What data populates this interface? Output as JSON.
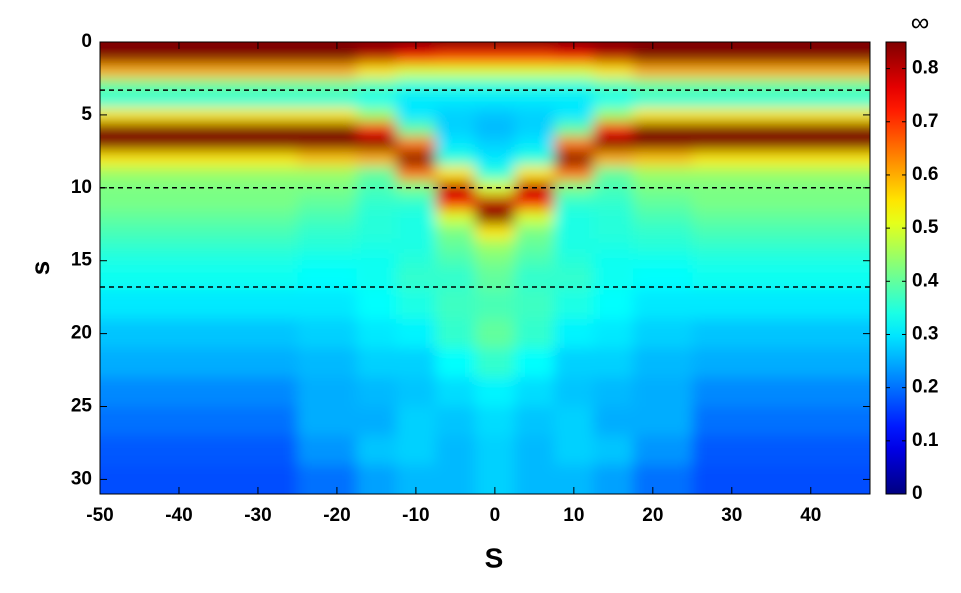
{
  "chart_data": {
    "type": "heatmap",
    "colormap": "jet",
    "x_label": "S",
    "y_label": "s",
    "colorbar_label": "∞",
    "xlim": [
      -50,
      47.5
    ],
    "xticks": [
      -50,
      -40,
      -30,
      -20,
      -10,
      0,
      10,
      20,
      30,
      40
    ],
    "ylim": [
      0,
      31
    ],
    "yticks": [
      0,
      5,
      10,
      15,
      20,
      25,
      30
    ],
    "y_reversed": true,
    "zlim": [
      0,
      0.85
    ],
    "zticks": [
      0,
      0.1,
      0.2,
      0.3,
      0.4,
      0.5,
      0.6,
      0.7,
      0.8
    ],
    "hlines": [
      3.3,
      10,
      16.8
    ],
    "x": [
      -50,
      -40,
      -30,
      -20,
      -15,
      -10,
      -5,
      0,
      5,
      10,
      15,
      20,
      30,
      40
    ],
    "y": [
      0,
      1,
      2,
      3,
      4,
      5,
      6,
      7,
      8,
      9,
      10,
      11,
      12,
      13,
      14,
      15,
      16,
      18,
      20,
      22,
      24,
      26,
      28,
      30
    ],
    "z": [
      [
        0.85,
        0.85,
        0.85,
        0.85,
        0.85,
        0.85,
        0.85,
        0.85,
        0.85,
        0.85,
        0.85,
        0.85,
        0.85,
        0.85
      ],
      [
        0.85,
        0.85,
        0.85,
        0.85,
        0.8,
        0.75,
        0.7,
        0.7,
        0.7,
        0.75,
        0.8,
        0.85,
        0.85,
        0.85
      ],
      [
        0.6,
        0.6,
        0.6,
        0.6,
        0.55,
        0.5,
        0.5,
        0.5,
        0.5,
        0.5,
        0.55,
        0.6,
        0.6,
        0.6
      ],
      [
        0.4,
        0.4,
        0.4,
        0.4,
        0.38,
        0.35,
        0.35,
        0.35,
        0.35,
        0.35,
        0.38,
        0.4,
        0.4,
        0.4
      ],
      [
        0.35,
        0.35,
        0.35,
        0.35,
        0.33,
        0.3,
        0.3,
        0.3,
        0.3,
        0.3,
        0.33,
        0.35,
        0.35,
        0.35
      ],
      [
        0.55,
        0.55,
        0.55,
        0.55,
        0.45,
        0.3,
        0.28,
        0.27,
        0.28,
        0.3,
        0.45,
        0.55,
        0.55,
        0.55
      ],
      [
        0.85,
        0.85,
        0.85,
        0.85,
        0.75,
        0.4,
        0.28,
        0.26,
        0.28,
        0.4,
        0.75,
        0.85,
        0.85,
        0.85
      ],
      [
        0.85,
        0.85,
        0.85,
        0.85,
        0.85,
        0.65,
        0.3,
        0.28,
        0.3,
        0.65,
        0.85,
        0.85,
        0.85,
        0.85
      ],
      [
        0.55,
        0.55,
        0.55,
        0.58,
        0.6,
        0.85,
        0.35,
        0.3,
        0.35,
        0.85,
        0.6,
        0.58,
        0.55,
        0.55
      ],
      [
        0.45,
        0.45,
        0.45,
        0.45,
        0.4,
        0.65,
        0.55,
        0.35,
        0.55,
        0.65,
        0.4,
        0.45,
        0.45,
        0.45
      ],
      [
        0.42,
        0.42,
        0.42,
        0.42,
        0.38,
        0.42,
        0.8,
        0.5,
        0.8,
        0.42,
        0.38,
        0.42,
        0.42,
        0.42
      ],
      [
        0.42,
        0.42,
        0.42,
        0.4,
        0.36,
        0.36,
        0.75,
        0.8,
        0.75,
        0.36,
        0.36,
        0.4,
        0.42,
        0.42
      ],
      [
        0.4,
        0.4,
        0.4,
        0.38,
        0.35,
        0.34,
        0.5,
        0.85,
        0.5,
        0.34,
        0.35,
        0.38,
        0.4,
        0.4
      ],
      [
        0.38,
        0.38,
        0.38,
        0.36,
        0.35,
        0.34,
        0.42,
        0.55,
        0.42,
        0.34,
        0.35,
        0.36,
        0.38,
        0.38
      ],
      [
        0.36,
        0.36,
        0.36,
        0.35,
        0.34,
        0.34,
        0.4,
        0.45,
        0.4,
        0.34,
        0.34,
        0.35,
        0.36,
        0.36
      ],
      [
        0.34,
        0.34,
        0.34,
        0.33,
        0.33,
        0.35,
        0.38,
        0.42,
        0.38,
        0.35,
        0.33,
        0.33,
        0.34,
        0.34
      ],
      [
        0.33,
        0.33,
        0.33,
        0.32,
        0.33,
        0.36,
        0.36,
        0.4,
        0.36,
        0.36,
        0.33,
        0.32,
        0.33,
        0.33
      ],
      [
        0.3,
        0.3,
        0.3,
        0.3,
        0.32,
        0.34,
        0.37,
        0.38,
        0.37,
        0.34,
        0.32,
        0.3,
        0.3,
        0.3
      ],
      [
        0.27,
        0.27,
        0.27,
        0.28,
        0.3,
        0.31,
        0.36,
        0.4,
        0.36,
        0.31,
        0.3,
        0.28,
        0.27,
        0.27
      ],
      [
        0.25,
        0.25,
        0.25,
        0.26,
        0.28,
        0.28,
        0.32,
        0.36,
        0.32,
        0.28,
        0.28,
        0.26,
        0.25,
        0.25
      ],
      [
        0.22,
        0.22,
        0.22,
        0.25,
        0.26,
        0.27,
        0.29,
        0.31,
        0.29,
        0.27,
        0.26,
        0.25,
        0.22,
        0.22
      ],
      [
        0.2,
        0.2,
        0.2,
        0.25,
        0.25,
        0.28,
        0.27,
        0.29,
        0.27,
        0.28,
        0.25,
        0.25,
        0.2,
        0.2
      ],
      [
        0.18,
        0.18,
        0.18,
        0.23,
        0.27,
        0.28,
        0.26,
        0.28,
        0.26,
        0.28,
        0.27,
        0.23,
        0.18,
        0.18
      ],
      [
        0.17,
        0.17,
        0.17,
        0.2,
        0.24,
        0.26,
        0.26,
        0.28,
        0.26,
        0.26,
        0.24,
        0.2,
        0.17,
        0.17
      ]
    ]
  }
}
